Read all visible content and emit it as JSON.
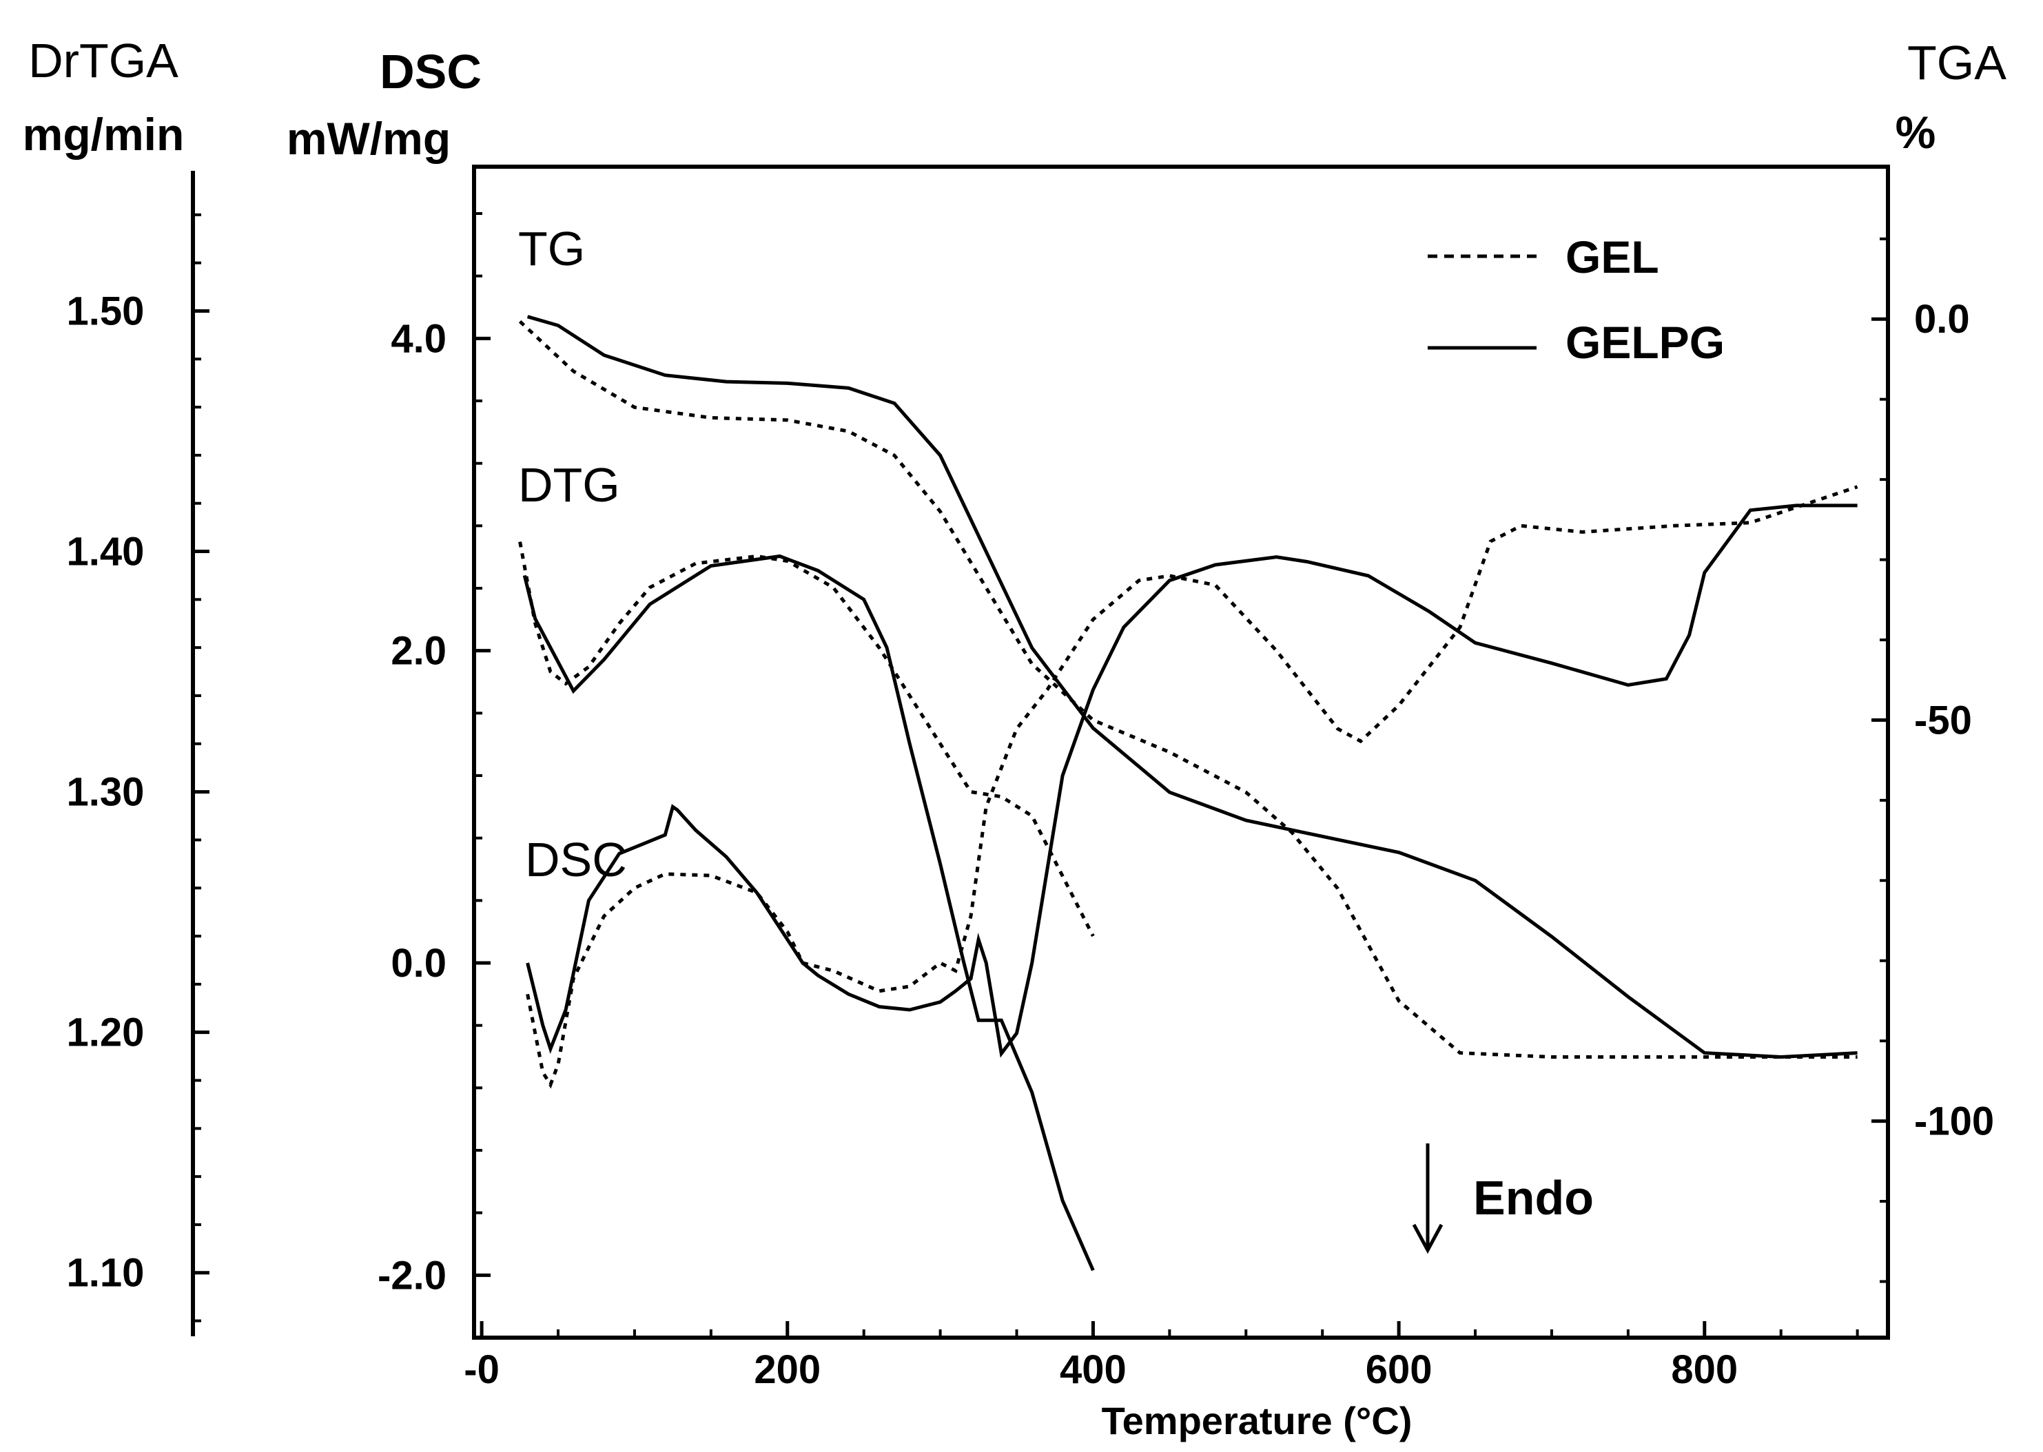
{
  "chart_data": {
    "type": "line",
    "x_axis": {
      "label": "Temperature (°C)",
      "range": [
        -5,
        920
      ],
      "ticks": [
        0,
        200,
        400,
        600,
        800
      ],
      "tick_labels": [
        "-0",
        "200",
        "400",
        "600",
        "800"
      ]
    },
    "axes": {
      "drtga": {
        "title": "DrTGA",
        "unit": "mg/min",
        "range": [
          1.073,
          1.56
        ],
        "ticks": [
          1.1,
          1.2,
          1.3,
          1.4,
          1.5
        ],
        "tick_labels": [
          "1.10",
          "1.20",
          "1.30",
          "1.40",
          "1.50"
        ]
      },
      "dsc": {
        "title": "DSC",
        "unit": "mW/mg",
        "range": [
          -2.4,
          5.1
        ],
        "ticks": [
          -2.0,
          0.0,
          2.0,
          4.0
        ],
        "tick_labels": [
          "-2.0",
          "0.0",
          "2.0",
          "4.0"
        ]
      },
      "tga": {
        "title": "TGA",
        "unit": "%",
        "range": [
          -127,
          19
        ],
        "ticks": [
          -100,
          -50,
          0
        ],
        "tick_labels": [
          "-100",
          "-50",
          "0.0"
        ]
      }
    },
    "curve_labels": {
      "tg": "TG",
      "dtg": "DTG",
      "dsc": "DSC"
    },
    "annotation": "Endo",
    "legend": [
      {
        "name": "GEL",
        "style": "dashed"
      },
      {
        "name": "GELPG",
        "style": "solid"
      }
    ],
    "series": [
      {
        "name": "GEL",
        "curve": "TG",
        "axis": "tga",
        "x": [
          25,
          60,
          100,
          150,
          200,
          240,
          270,
          300,
          330,
          360,
          400,
          450,
          500,
          530,
          560,
          600,
          640,
          700,
          800,
          900
        ],
        "values": [
          -0.3,
          -6.5,
          -11,
          -12.3,
          -12.6,
          -14,
          -17,
          -24,
          -33.5,
          -43,
          -50,
          -54,
          -59,
          -64,
          -71,
          -85,
          -91.5,
          -92,
          -92,
          -92
        ]
      },
      {
        "name": "GEL",
        "curve": "DTG",
        "axis": "drtga",
        "x": [
          25,
          35,
          45,
          55,
          70,
          90,
          110,
          140,
          180,
          200,
          230,
          260,
          290,
          320,
          340,
          360,
          380,
          400
        ],
        "values": [
          1.404,
          1.37,
          1.35,
          1.345,
          1.352,
          1.37,
          1.385,
          1.395,
          1.398,
          1.396,
          1.385,
          1.36,
          1.33,
          1.3,
          1.298,
          1.29,
          1.265,
          1.24
        ]
      },
      {
        "name": "GEL",
        "curve": "DSC",
        "axis": "dsc",
        "x": [
          30,
          40,
          45,
          50,
          60,
          80,
          100,
          120,
          150,
          180,
          200,
          210,
          230,
          260,
          280,
          300,
          310,
          320,
          330,
          350,
          370,
          400,
          430,
          450,
          480,
          520,
          560,
          575,
          600,
          640,
          660,
          680,
          720,
          780,
          830,
          900
        ],
        "values": [
          -0.2,
          -0.7,
          -0.78,
          -0.65,
          -0.1,
          0.3,
          0.48,
          0.57,
          0.56,
          0.45,
          0.2,
          0.0,
          -0.05,
          -0.18,
          -0.15,
          0.0,
          -0.05,
          0.3,
          1.0,
          1.5,
          1.75,
          2.2,
          2.45,
          2.48,
          2.42,
          2.0,
          1.5,
          1.42,
          1.65,
          2.15,
          2.7,
          2.8,
          2.76,
          2.8,
          2.82,
          3.05
        ]
      },
      {
        "name": "GELPG",
        "curve": "TG",
        "axis": "tga",
        "x": [
          30,
          50,
          80,
          120,
          160,
          200,
          240,
          270,
          300,
          330,
          360,
          400,
          450,
          500,
          550,
          600,
          650,
          700,
          750,
          800,
          850,
          900
        ],
        "values": [
          0.3,
          -0.8,
          -4.5,
          -7,
          -7.8,
          -8,
          -8.6,
          -10.5,
          -17,
          -29,
          -41,
          -51,
          -59,
          -62.5,
          -64.5,
          -66.5,
          -70,
          -77,
          -84.5,
          -91.5,
          -92,
          -91.5
        ]
      },
      {
        "name": "GELPG",
        "curve": "DTG",
        "axis": "drtga",
        "x": [
          28,
          35,
          45,
          60,
          80,
          110,
          150,
          195,
          220,
          250,
          265,
          280,
          300,
          315,
          325,
          340,
          360,
          380,
          400
        ],
        "values": [
          1.39,
          1.372,
          1.36,
          1.342,
          1.355,
          1.378,
          1.394,
          1.398,
          1.392,
          1.38,
          1.36,
          1.32,
          1.27,
          1.23,
          1.205,
          1.205,
          1.175,
          1.13,
          1.101
        ]
      },
      {
        "name": "GELPG",
        "curve": "DSC",
        "axis": "dsc",
        "x": [
          30,
          40,
          45,
          55,
          70,
          90,
          110,
          120,
          125,
          128,
          140,
          160,
          180,
          200,
          210,
          220,
          240,
          260,
          280,
          300,
          310,
          320,
          325,
          330,
          340,
          350,
          360,
          380,
          400,
          420,
          450,
          480,
          520,
          540,
          580,
          620,
          650,
          700,
          750,
          775,
          790,
          800,
          830,
          860,
          900
        ],
        "values": [
          0.0,
          -0.4,
          -0.55,
          -0.3,
          0.4,
          0.7,
          0.78,
          0.82,
          1.0,
          0.98,
          0.85,
          0.68,
          0.45,
          0.15,
          0.0,
          -0.08,
          -0.2,
          -0.28,
          -0.3,
          -0.25,
          -0.18,
          -0.1,
          0.15,
          0.0,
          -0.58,
          -0.45,
          0.0,
          1.2,
          1.75,
          2.15,
          2.45,
          2.55,
          2.6,
          2.57,
          2.48,
          2.25,
          2.05,
          1.92,
          1.78,
          1.82,
          2.1,
          2.5,
          2.9,
          2.93,
          2.93
        ]
      }
    ]
  }
}
